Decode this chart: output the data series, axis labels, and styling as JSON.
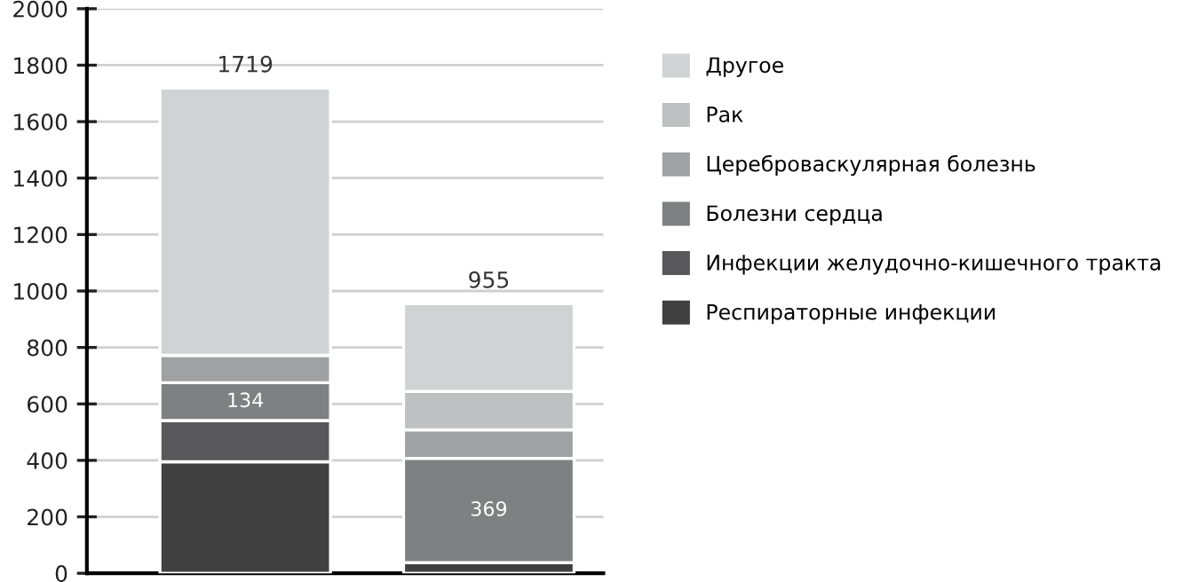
{
  "chart_data": {
    "type": "bar",
    "stacked": true,
    "categories": [
      null,
      null
    ],
    "series": [
      {
        "name": "Респираторные инфекции",
        "color": "#404040",
        "values": [
          395,
          38
        ]
      },
      {
        "name": "Инфекции желудочно-кишечного тракта",
        "color": "#58585a",
        "values": [
          146,
          0
        ]
      },
      {
        "name": "Болезни сердца",
        "color": "#7f8082",
        "values": [
          134,
          369
        ],
        "value_labels": [
          "134",
          "369"
        ]
      },
      {
        "name": "Цереброваскулярная болезнь",
        "color": "#a0a1a3",
        "values": [
          97,
          101
        ]
      },
      {
        "name": "Рак",
        "color": "#bfc0c2",
        "values": [
          0,
          136
        ]
      },
      {
        "name": "Другое",
        "color": "#d0d2d3",
        "values": [
          947,
          311
        ]
      }
    ],
    "totals": [
      "1719",
      "955"
    ],
    "ylim": [
      0,
      2000
    ],
    "yticks": [
      0,
      200,
      400,
      600,
      800,
      1000,
      1200,
      1400,
      1600,
      1800,
      2000
    ],
    "grid": "y",
    "legend": "right"
  }
}
